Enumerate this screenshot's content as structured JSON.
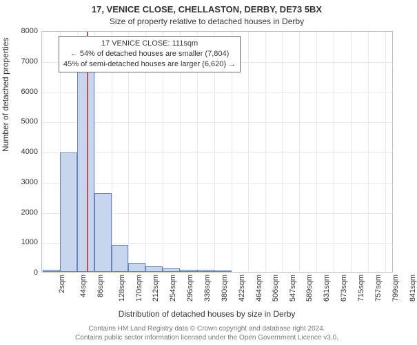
{
  "title_main": "17, VENICE CLOSE, CHELLASTON, DERBY, DE73 5BX",
  "title_sub": "Size of property relative to detached houses in Derby",
  "chart": {
    "type": "histogram",
    "ylabel": "Number of detached properties",
    "xlabel": "Distribution of detached houses by size in Derby",
    "ylim": [
      0,
      8000
    ],
    "ytick_step": 1000,
    "yticks": [
      0,
      1000,
      2000,
      3000,
      4000,
      5000,
      6000,
      7000,
      8000
    ],
    "x_min": 0,
    "x_max": 862,
    "x_tick_start": 2,
    "x_tick_step": 42,
    "x_tick_suffix": "sqm",
    "xticks": [
      2,
      44,
      86,
      128,
      170,
      212,
      254,
      296,
      338,
      380,
      422,
      464,
      506,
      547,
      589,
      631,
      673,
      715,
      757,
      799,
      841
    ],
    "bar_fill": "#c7d6ee",
    "bar_stroke": "#6a82b4",
    "grid_color": "#e8e8ec",
    "axis_color": "#bfbfbf",
    "background": "#ffffff",
    "bin_width": 42,
    "bars": [
      {
        "x0": 2,
        "count": 80
      },
      {
        "x0": 44,
        "count": 3950
      },
      {
        "x0": 86,
        "count": 6900
      },
      {
        "x0": 128,
        "count": 2600
      },
      {
        "x0": 170,
        "count": 900
      },
      {
        "x0": 212,
        "count": 300
      },
      {
        "x0": 254,
        "count": 180
      },
      {
        "x0": 296,
        "count": 120
      },
      {
        "x0": 338,
        "count": 80
      },
      {
        "x0": 380,
        "count": 60
      },
      {
        "x0": 422,
        "count": 40
      }
    ],
    "marker": {
      "x": 111,
      "color": "#d64545"
    },
    "annotation": {
      "lines": [
        "17 VENICE CLOSE: 111sqm",
        "← 54% of detached houses are smaller (7,804)",
        "45% of semi-detached houses are larger (6,620) →"
      ],
      "border_color": "#666666",
      "background": "#ffffff"
    }
  },
  "footer_line1": "Contains HM Land Registry data © Crown copyright and database right 2024.",
  "footer_line2": "Contains public sector information licensed under the Open Government Licence v3.0.",
  "styling": {
    "title_fontsize": 13,
    "subtitle_fontsize": 12,
    "axis_label_fontsize": 12,
    "tick_fontsize": 11,
    "footer_fontsize": 10,
    "footer_color": "#777777",
    "text_color": "#333333"
  }
}
